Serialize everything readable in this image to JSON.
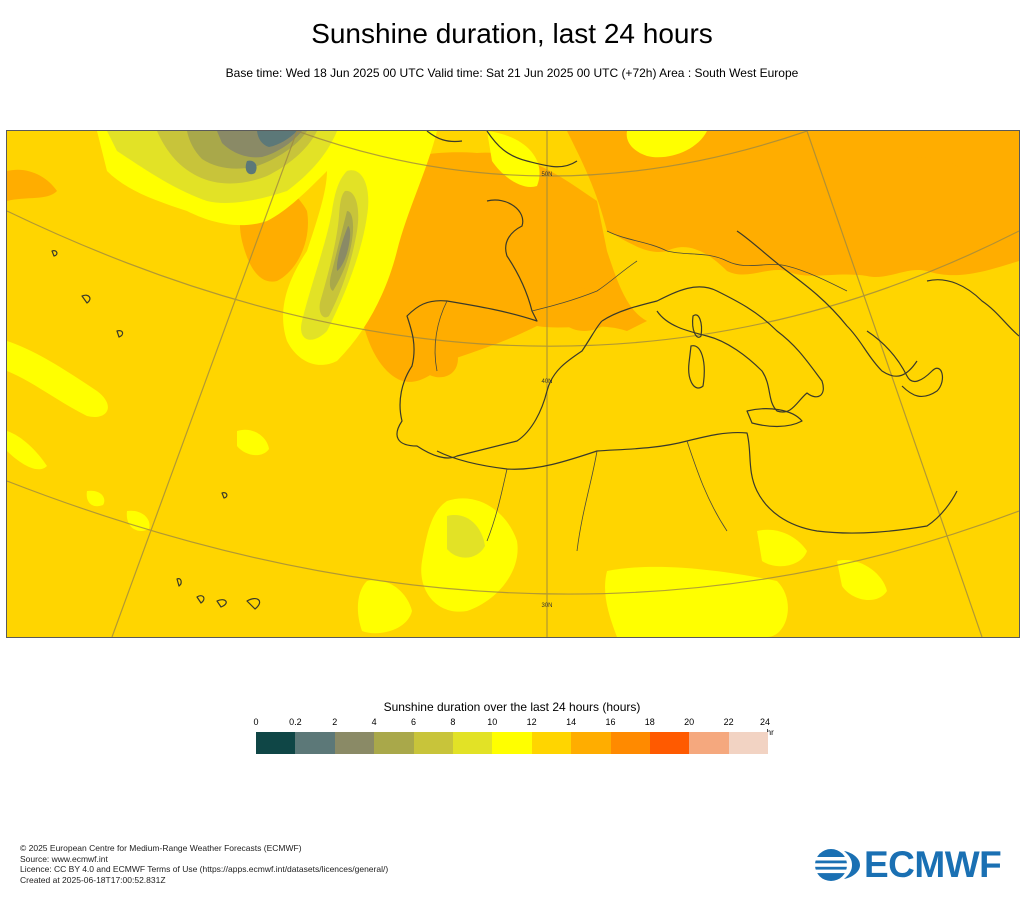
{
  "header": {
    "title": "Sunshine duration, last 24 hours",
    "subtitle": "Base time: Wed 18 Jun 2025 00 UTC Valid time: Sat 21 Jun 2025 00 UTC (+72h) Area : South West Europe"
  },
  "map": {
    "lat_labels": [
      "50N",
      "40N",
      "30N"
    ]
  },
  "legend": {
    "title": "Sunshine duration over the last 24 hours (hours)",
    "unit": "-hr",
    "ticks": [
      "0",
      "0.2",
      "2",
      "4",
      "6",
      "8",
      "10",
      "12",
      "14",
      "16",
      "18",
      "20",
      "22",
      "24"
    ],
    "colors": [
      "#0f4646",
      "#5c7878",
      "#8a8a66",
      "#a9a84a",
      "#c8c43a",
      "#e2e226",
      "#ffff00",
      "#ffd500",
      "#ffad00",
      "#ff8a00",
      "#ff5a00",
      "#f5a87e",
      "#f2d3c3"
    ]
  },
  "footer": {
    "lines": [
      "© 2025 European Centre for Medium-Range Weather Forecasts (ECMWF)",
      "Source: www.ecmwf.int",
      "Licence: CC BY 4.0 and ECMWF Terms of Use (https://apps.ecmwf.int/datasets/licences/general/)",
      "Created at 2025-06-18T17:00:52.831Z"
    ]
  },
  "logo": {
    "text": "ECMWF",
    "color": "#1a70b3"
  }
}
